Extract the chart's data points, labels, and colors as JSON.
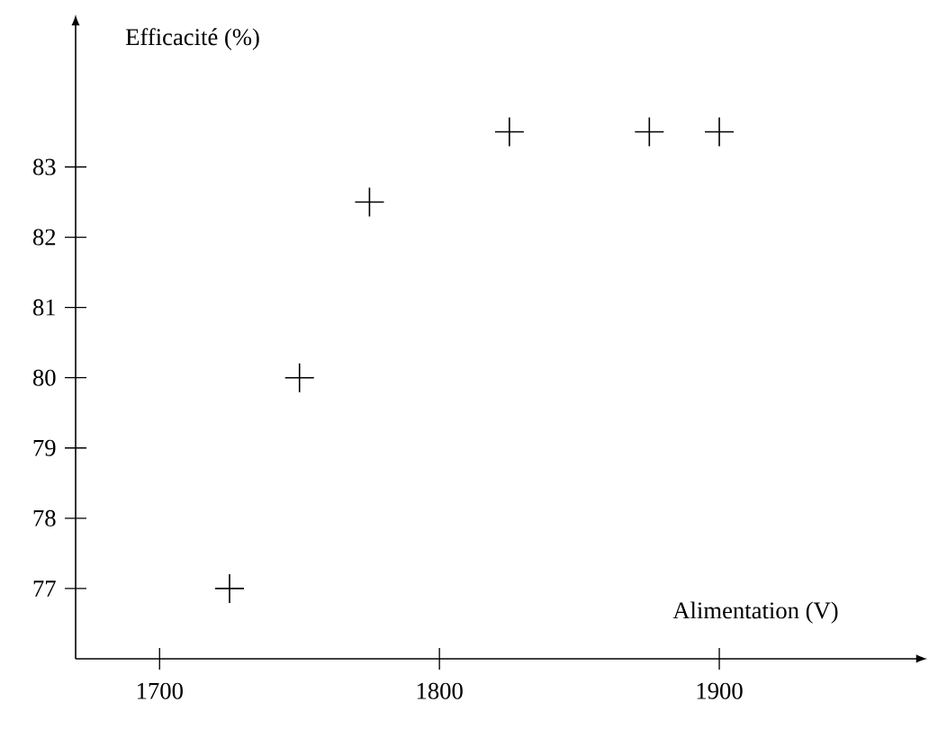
{
  "chart_data": {
    "type": "scatter",
    "xlabel": "Alimentation (V)",
    "ylabel": "Efficacité (%)",
    "x": [
      1725,
      1750,
      1775,
      1825,
      1875,
      1900
    ],
    "values": [
      77,
      80,
      82.5,
      83.5,
      83.5,
      83.5
    ],
    "color": "#000000",
    "marker": "cross",
    "xlim": [
      1670,
      1970
    ],
    "ylim": [
      76,
      85
    ],
    "xticks": [
      1700,
      1800,
      1900
    ],
    "yticks": [
      77,
      78,
      79,
      80,
      81,
      82,
      83
    ],
    "grid": false
  }
}
